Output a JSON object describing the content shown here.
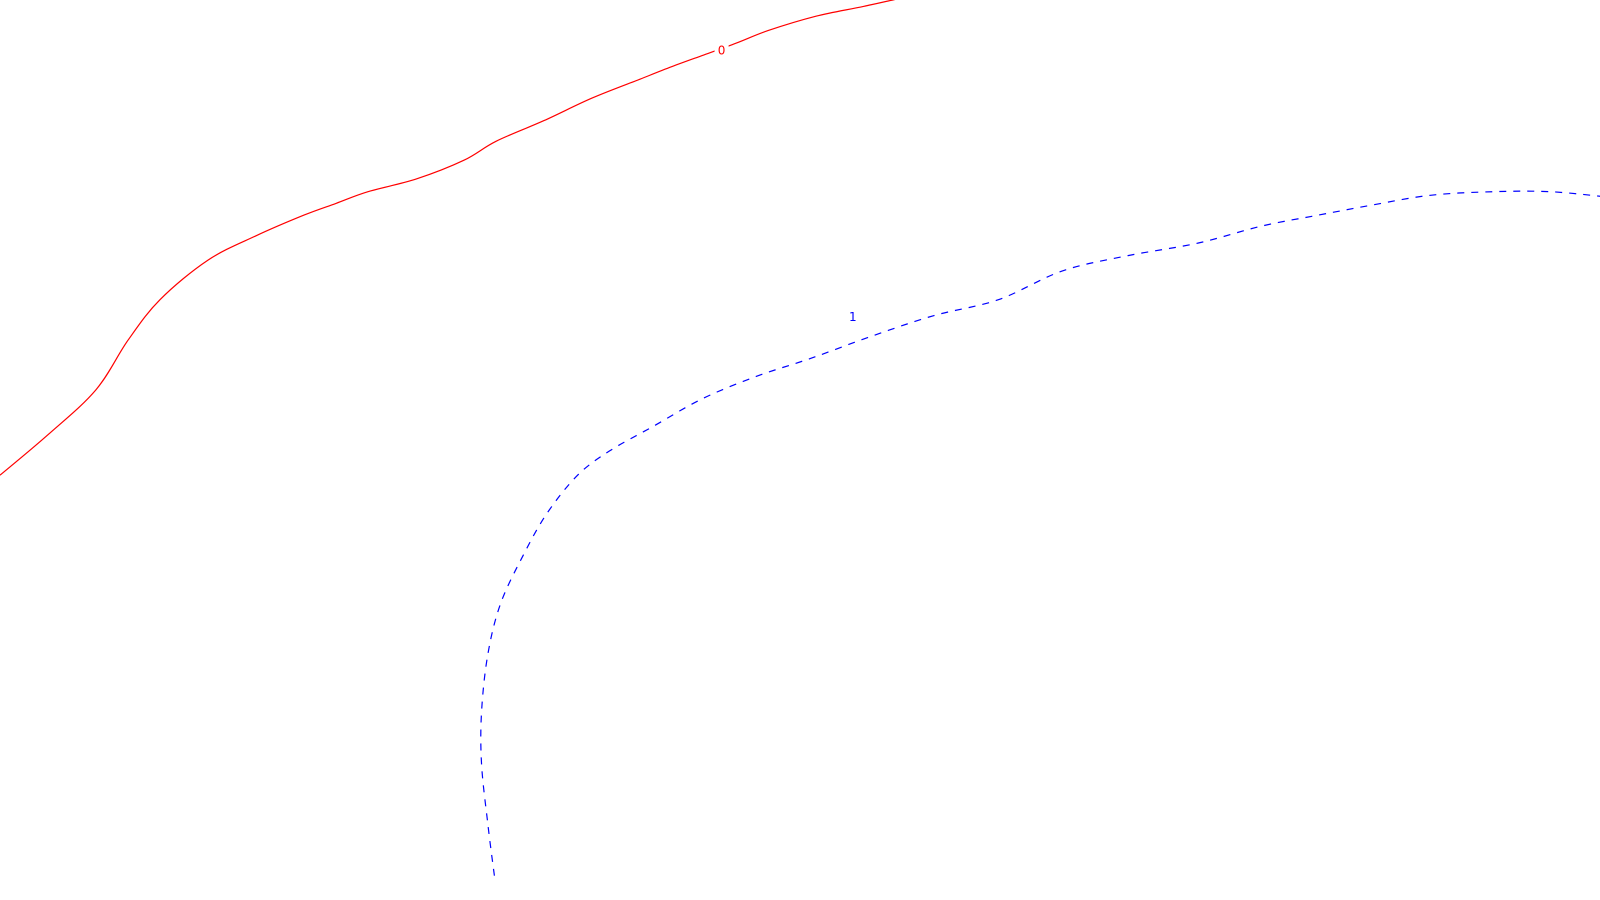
{
  "chart_data": {
    "type": "line",
    "grid": false,
    "series": [
      {
        "name": "0",
        "color": "#ff0000",
        "line_style": "solid",
        "x": [
          0.0,
          0.03,
          0.06,
          0.08,
          0.1,
          0.13,
          0.16,
          0.19,
          0.21,
          0.23,
          0.26,
          0.29,
          0.31,
          0.34,
          0.37,
          0.4,
          0.42,
          0.44,
          0.46,
          0.48,
          0.51,
          0.54,
          0.57,
          0.59
        ],
        "y": [
          0.472,
          0.517,
          0.567,
          0.622,
          0.667,
          0.711,
          0.738,
          0.761,
          0.774,
          0.787,
          0.801,
          0.822,
          0.843,
          0.866,
          0.891,
          0.912,
          0.926,
          0.939,
          0.952,
          0.966,
          0.982,
          0.993,
          1.005,
          1.015
        ]
      },
      {
        "name": "1",
        "color": "#0000ff",
        "line_style": "dashed",
        "x": [
          0.309,
          0.305,
          0.301,
          0.301,
          0.305,
          0.313,
          0.327,
          0.342,
          0.361,
          0.381,
          0.408,
          0.439,
          0.473,
          0.507,
          0.544,
          0.583,
          0.624,
          0.664,
          0.705,
          0.749,
          0.789,
          0.824,
          0.857,
          0.894,
          0.933,
          0.969,
          1.005
        ],
        "y": [
          0.027,
          0.083,
          0.15,
          0.21,
          0.274,
          0.33,
          0.383,
          0.43,
          0.472,
          0.499,
          0.526,
          0.557,
          0.582,
          0.602,
          0.626,
          0.649,
          0.667,
          0.699,
          0.716,
          0.73,
          0.749,
          0.761,
          0.772,
          0.783,
          0.787,
          0.787,
          0.781
        ]
      }
    ],
    "labels": [
      {
        "text": "0",
        "x": 0.451,
        "y": 0.944,
        "color": "#ff0000"
      },
      {
        "text": "1",
        "x": 0.533,
        "y": 0.648,
        "color": "#0000ff"
      }
    ],
    "xlim": [
      0,
      1
    ],
    "ylim": [
      0,
      1
    ]
  }
}
